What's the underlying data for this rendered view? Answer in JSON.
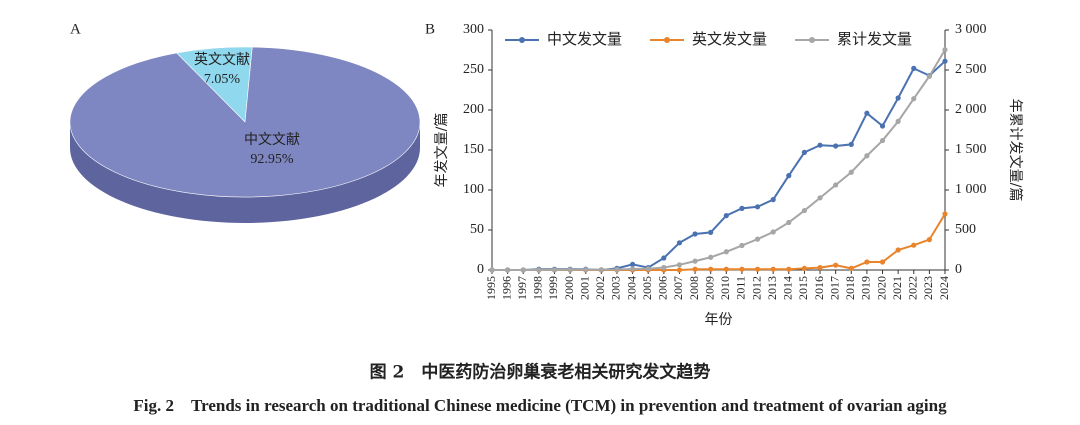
{
  "chart_data": [
    {
      "type": "pie",
      "panel": "A",
      "categories": [
        "英文文献",
        "中文文献"
      ],
      "values": [
        7.05,
        92.95
      ],
      "value_labels": [
        "7.05%",
        "92.95%"
      ],
      "colors": [
        "#8fd8ee",
        "#7f87c2"
      ]
    },
    {
      "type": "line",
      "panel": "B",
      "categories": [
        "1995",
        "1996",
        "1997",
        "1998",
        "1999",
        "2000",
        "2001",
        "2002",
        "2003",
        "2004",
        "2005",
        "2006",
        "2007",
        "2008",
        "2009",
        "2010",
        "2011",
        "2012",
        "2013",
        "2014",
        "2015",
        "2016",
        "2017",
        "2018",
        "2019",
        "2020",
        "2021",
        "2022",
        "2023",
        "2024"
      ],
      "x_label": "年份",
      "y_label": "年发文量/篇",
      "y2_label": "年累计发文量/篇",
      "legend": "top",
      "series": [
        {
          "name": "中文发文量",
          "color": "#4a72b0",
          "values": [
            0,
            0,
            0,
            1,
            1,
            1,
            1,
            0,
            2,
            7,
            3,
            15,
            34,
            45,
            47,
            68,
            77,
            79,
            88,
            118,
            147,
            156,
            155,
            157,
            196,
            180,
            215,
            252,
            243,
            261
          ]
        },
        {
          "name": "英文发文量",
          "color": "#e8842c",
          "values": [
            0,
            0,
            0,
            0,
            0,
            0,
            0,
            0,
            0,
            0,
            0,
            0,
            0,
            1,
            1,
            1,
            1,
            1,
            1,
            1,
            2,
            3,
            6,
            2,
            10,
            10,
            25,
            31,
            38,
            70
          ]
        },
        {
          "name": "累计发文量",
          "color": "#a6a6a6",
          "axis": "y2",
          "values": [
            0,
            0,
            0,
            1,
            2,
            3,
            4,
            4,
            6,
            13,
            16,
            31,
            65,
            111,
            159,
            228,
            306,
            386,
            475,
            594,
            743,
            902,
            1063,
            1222,
            1428,
            1618,
            1858,
            2141,
            2422,
            2753
          ]
        }
      ],
      "ylim": [
        0,
        300
      ],
      "yticks": [
        0,
        50,
        100,
        150,
        200,
        250,
        300
      ],
      "y2lim": [
        0,
        3000
      ],
      "y2ticks": [
        0,
        500,
        {
          "value": 1000,
          "label": "1 000"
        },
        {
          "value": 1500,
          "label": "1 500"
        },
        {
          "value": 2000,
          "label": "2 000"
        },
        {
          "value": 2500,
          "label": "2 500"
        },
        {
          "value": 3000,
          "label": "3 000"
        }
      ]
    }
  ],
  "caption": {
    "cn": "图 2　中医药防治卵巢衰老相关研究发文趋势",
    "en": "Fig. 2　Trends in research on traditional Chinese medicine (TCM) in prevention and treatment of ovarian aging"
  }
}
